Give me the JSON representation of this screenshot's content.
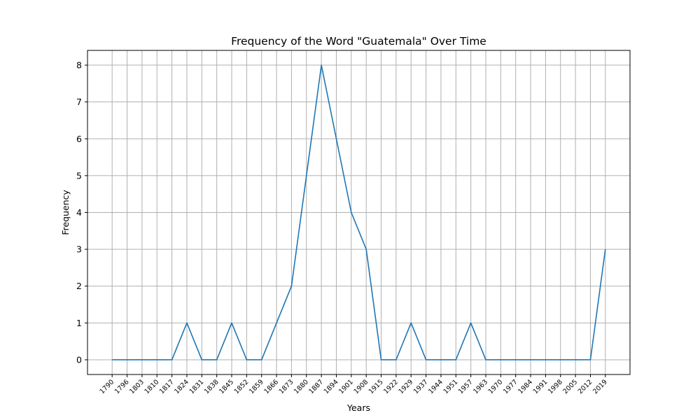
{
  "chart_data": {
    "type": "line",
    "title": "Frequency of the Word \"Guatemala\" Over Time",
    "xlabel": "Years",
    "ylabel": "Frequency",
    "categories": [
      "1790",
      "1796",
      "1803",
      "1810",
      "1817",
      "1824",
      "1831",
      "1838",
      "1845",
      "1852",
      "1859",
      "1866",
      "1873",
      "1880",
      "1887",
      "1894",
      "1901",
      "1908",
      "1915",
      "1922",
      "1929",
      "1937",
      "1944",
      "1951",
      "1957",
      "1963",
      "1970",
      "1977",
      "1984",
      "1991",
      "1998",
      "2005",
      "2012",
      "2019"
    ],
    "series": [
      {
        "values": [
          0,
          0,
          0,
          0,
          0,
          1,
          0,
          0,
          1,
          0,
          0,
          1,
          2,
          5,
          8,
          6,
          4,
          3,
          0,
          0,
          1,
          0,
          0,
          0,
          1,
          0,
          0,
          0,
          0,
          0,
          0,
          0,
          0,
          3
        ]
      }
    ],
    "yticks": [
      0,
      1,
      2,
      3,
      4,
      5,
      6,
      7,
      8
    ],
    "ylim": [
      -0.4,
      8.4
    ],
    "grid": true,
    "line_color": "#1f77b4"
  }
}
